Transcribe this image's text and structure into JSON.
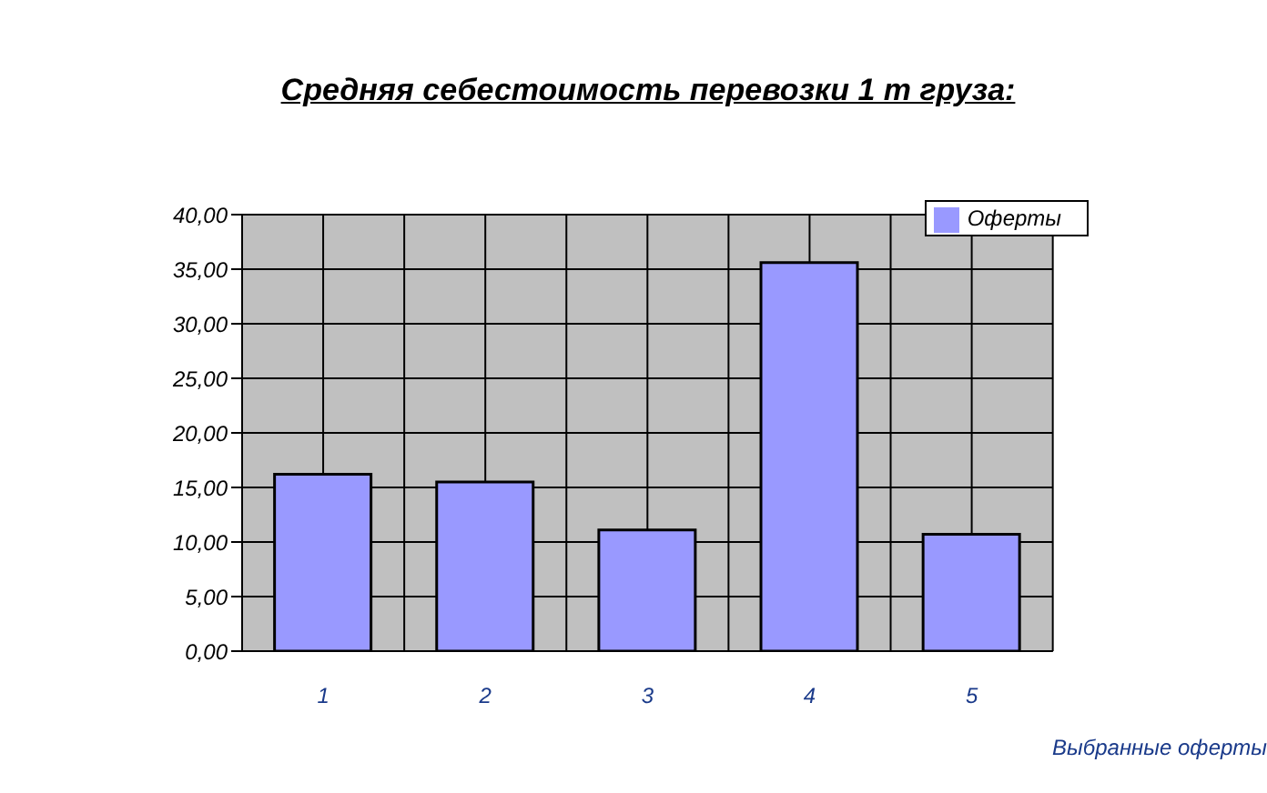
{
  "chart_data": {
    "type": "bar",
    "title": "Средняя себестоимость перевозки 1 т груза:",
    "xlabel": "Выбранные оферты",
    "categories": [
      "1",
      "2",
      "3",
      "4",
      "5"
    ],
    "series": [
      {
        "name": "Оферты",
        "color": "#9999ff",
        "values": [
          16.2,
          15.5,
          11.1,
          35.6,
          10.7
        ]
      }
    ],
    "ylim": [
      0,
      40
    ],
    "yticks": [
      {
        "value": 0,
        "label": "0,00"
      },
      {
        "value": 5,
        "label": "5,00"
      },
      {
        "value": 10,
        "label": "10,00"
      },
      {
        "value": 15,
        "label": "15,00"
      },
      {
        "value": 20,
        "label": "20,00"
      },
      {
        "value": 25,
        "label": "25,00"
      },
      {
        "value": 30,
        "label": "30,00"
      },
      {
        "value": 35,
        "label": "35,00"
      },
      {
        "value": 40,
        "label": "40,00"
      }
    ],
    "grid": true,
    "legend": "top right"
  }
}
